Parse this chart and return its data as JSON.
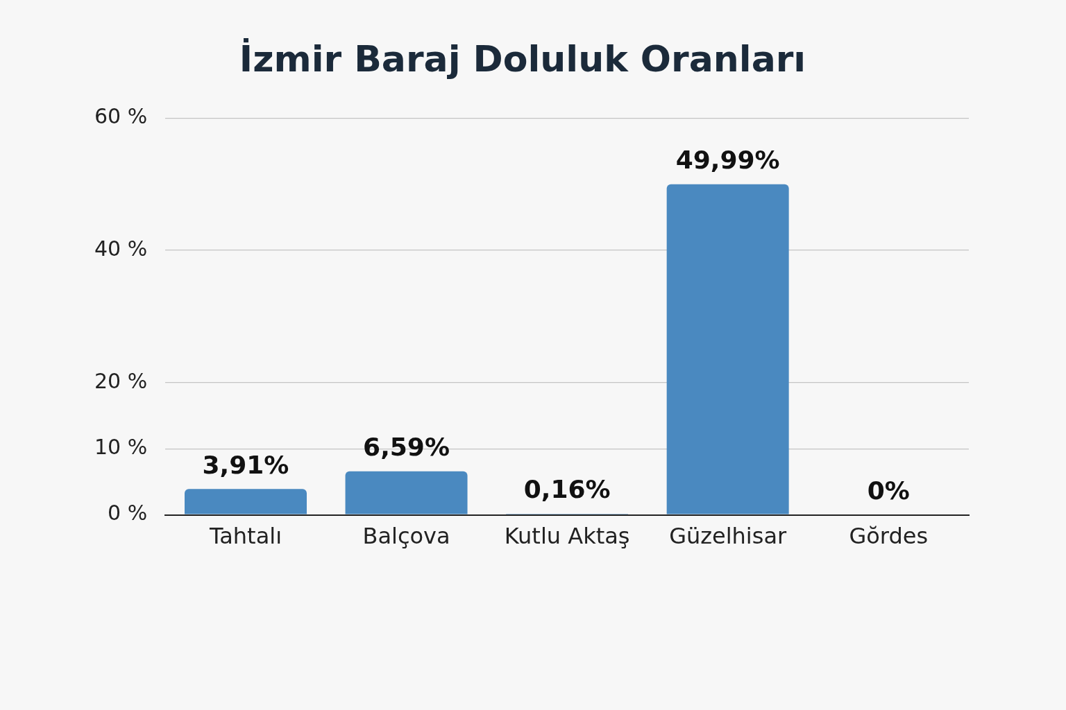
{
  "chart_data": {
    "type": "bar",
    "title": "İzmir Baraj Doluluk Oranları",
    "categories": [
      "Tahtalı",
      "Balçova",
      "Kutlu Aktaş",
      "Güzelhisar",
      "Gŏrdes"
    ],
    "values": [
      3.91,
      6.59,
      0.16,
      49.99,
      0
    ],
    "value_labels": [
      "3,91%",
      "6,59%",
      "0,16%",
      "49,99%",
      "0%"
    ],
    "color": "#4a89c0",
    "ylim": [
      0,
      60
    ],
    "yticks": [
      {
        "value": 0,
        "label": "0 %"
      },
      {
        "value": 10,
        "label": "10 %"
      },
      {
        "value": 20,
        "label": "20 %"
      },
      {
        "value": 40,
        "label": "40 %"
      },
      {
        "value": 60,
        "label": "60 %"
      }
    ],
    "grid": "y"
  }
}
